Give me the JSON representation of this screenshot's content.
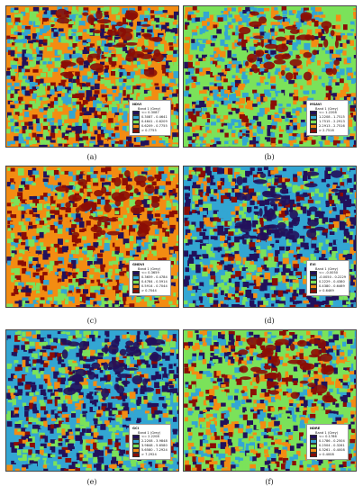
{
  "palette": {
    "c1": "#22115b",
    "c2": "#33a6d3",
    "c3": "#7be25a",
    "c4": "#f38c12",
    "c5": "#8b0d05"
  },
  "panels": [
    {
      "label": "(a)",
      "legend": {
        "title": "NDVI",
        "band": "Band 1 (Grey)",
        "classes": [
          "<= 0.3087",
          "0.3087 - 0.4641",
          "0.4641 - 0.6209",
          "0.6209 - 0.7755",
          "> 0.7755"
        ]
      }
    },
    {
      "label": "(b)",
      "legend": {
        "title": "MSAVI",
        "band": "Band 1 (Grey)",
        "classes": [
          "<= 1.2208",
          "1.2208 - 1.7515",
          "1.7515 - 2.2913",
          "2.2913 - 2.7516",
          "> 2.7516"
        ]
      }
    },
    {
      "label": "(c)",
      "legend": {
        "title": "GNDVI",
        "band": "Band 1 (Grey)",
        "classes": [
          "<= 0.3659",
          "0.3659 - 0.4784",
          "0.4784 - 0.5914",
          "0.5914 - 0.7044",
          "> 0.7044"
        ]
      }
    },
    {
      "label": "(d)",
      "legend": {
        "title": "EVI",
        "band": "Band 1 (Grey)",
        "classes": [
          "<= -0.0050",
          "-0.0050 - 0.2229",
          "0.2229 - 0.4380",
          "0.4380 - 0.6469",
          "> 0.6469"
        ]
      }
    },
    {
      "label": "(e)",
      "legend": {
        "title": "GCI",
        "band": "Band 1 (Grey)",
        "classes": [
          "<= 2.2208",
          "2.2208 - 3.9848",
          "3.9848 - 5.6580",
          "5.6580 - 7.2924",
          "> 7.2924"
        ]
      }
    },
    {
      "label": "(f)",
      "legend": {
        "title": "NDRE",
        "band": "Band 1 (Grey)",
        "classes": [
          "<= 0.1786",
          "0.1786 - 0.2504",
          "0.2504 - 0.3261",
          "0.3261 - 0.4008",
          "> 0.4008"
        ]
      }
    }
  ]
}
